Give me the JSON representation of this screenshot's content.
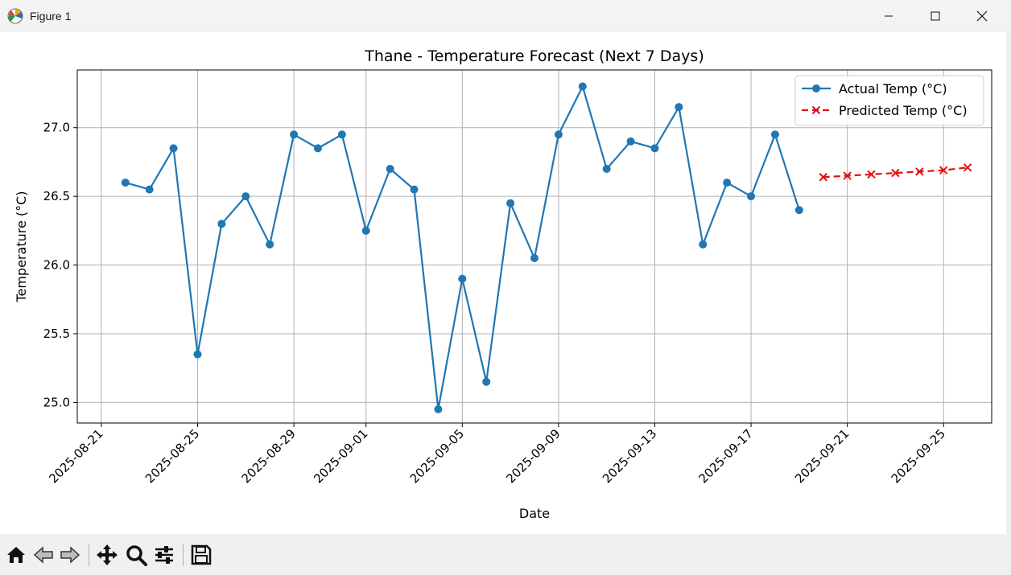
{
  "window": {
    "title": "Figure 1",
    "controls": {
      "minimize": "minimize",
      "maximize": "maximize",
      "close": "close"
    }
  },
  "toolbar": {
    "buttons": [
      "home",
      "back",
      "forward",
      "pan",
      "zoom",
      "configure-subplots",
      "save"
    ],
    "coordinates": ""
  },
  "colors": {
    "actual": "#1f77b4",
    "predicted": "#e01010",
    "grid": "#b0b0b0"
  },
  "chart_data": {
    "type": "line",
    "title": "Thane - Temperature Forecast (Next 7 Days)",
    "xlabel": "Date",
    "ylabel": "Temperature (°C)",
    "xlim": [
      "2025-08-20",
      "2025-09-27"
    ],
    "ylim": [
      24.85,
      27.42
    ],
    "x_ticks": [
      "2025-08-21",
      "2025-08-25",
      "2025-08-29",
      "2025-09-01",
      "2025-09-05",
      "2025-09-09",
      "2025-09-13",
      "2025-09-17",
      "2025-09-21",
      "2025-09-25"
    ],
    "y_ticks": [
      "25.0",
      "25.5",
      "26.0",
      "26.5",
      "27.0"
    ],
    "grid": true,
    "legend": "top-right",
    "series": [
      {
        "name": "Actual Temp (°C)",
        "style": "solid-circle",
        "x": [
          "2025-08-22",
          "2025-08-23",
          "2025-08-24",
          "2025-08-25",
          "2025-08-26",
          "2025-08-27",
          "2025-08-28",
          "2025-08-29",
          "2025-08-30",
          "2025-08-31",
          "2025-09-01",
          "2025-09-02",
          "2025-09-03",
          "2025-09-04",
          "2025-09-05",
          "2025-09-06",
          "2025-09-07",
          "2025-09-08",
          "2025-09-09",
          "2025-09-10",
          "2025-09-11",
          "2025-09-12",
          "2025-09-13",
          "2025-09-14",
          "2025-09-15",
          "2025-09-16",
          "2025-09-17",
          "2025-09-18",
          "2025-09-19"
        ],
        "y": [
          26.6,
          26.55,
          26.85,
          25.35,
          26.3,
          26.5,
          26.15,
          26.95,
          26.85,
          26.95,
          26.25,
          26.7,
          26.55,
          24.95,
          25.9,
          25.15,
          26.45,
          26.05,
          26.95,
          27.3,
          26.7,
          26.9,
          26.85,
          27.15,
          26.15,
          26.6,
          26.5,
          26.95,
          26.4
        ]
      },
      {
        "name": "Predicted Temp (°C)",
        "style": "dashed-x",
        "x": [
          "2025-09-20",
          "2025-09-21",
          "2025-09-22",
          "2025-09-23",
          "2025-09-24",
          "2025-09-25",
          "2025-09-26"
        ],
        "y": [
          26.64,
          26.65,
          26.66,
          26.67,
          26.68,
          26.69,
          26.71
        ]
      }
    ]
  }
}
